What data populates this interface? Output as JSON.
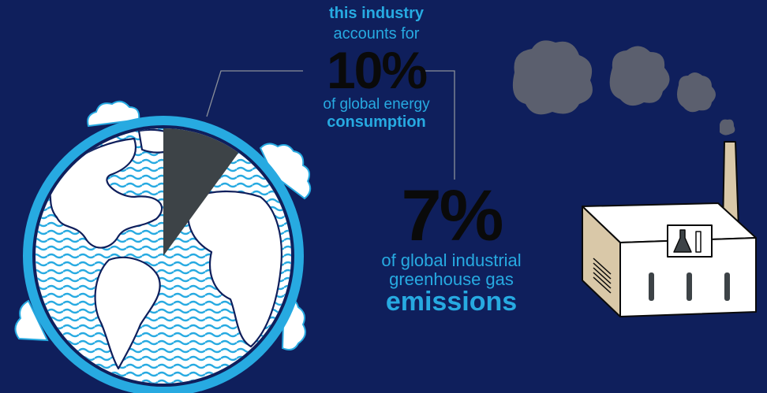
{
  "stat_energy": {
    "line1": "this industry",
    "line2": "accounts for",
    "value": "10%",
    "line3": "of global energy",
    "line4": "consumption",
    "share": 0.1
  },
  "stat_emissions": {
    "value": "7%",
    "line1": "of global industrial",
    "line2": "greenhouse gas",
    "line3": "emissions"
  },
  "colors": {
    "background": "#0f1f5c",
    "accent_blue": "#27aae1",
    "dark_slice": "#3d4347",
    "smoke": "#5b5f6e",
    "factory_wall": "#d9c8a8"
  }
}
